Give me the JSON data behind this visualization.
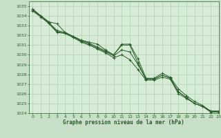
{
  "title": "Graphe pression niveau de la mer (hPa)",
  "background_color": "#c8dfc8",
  "plot_bg_color": "#d6ecd6",
  "grid_color": "#a8c8a8",
  "line_color": "#2a5c2a",
  "xlim": [
    -0.5,
    23
  ],
  "ylim": [
    1024,
    1035.5
  ],
  "xticks": [
    0,
    1,
    2,
    3,
    4,
    5,
    6,
    7,
    8,
    9,
    10,
    11,
    12,
    13,
    14,
    15,
    16,
    17,
    18,
    19,
    20,
    21,
    22,
    23
  ],
  "yticks": [
    1024,
    1025,
    1026,
    1027,
    1028,
    1029,
    1030,
    1031,
    1032,
    1033,
    1034,
    1035
  ],
  "series": [
    [
      1034.7,
      1034.0,
      1033.4,
      1033.2,
      1032.3,
      1031.9,
      1031.5,
      1031.3,
      1031.1,
      1030.5,
      1030.0,
      1031.1,
      1031.1,
      1029.6,
      1027.6,
      1027.6,
      1028.1,
      1027.7,
      1026.5,
      1025.8,
      1025.2,
      1024.8,
      1024.2,
      1024.2
    ],
    [
      1034.7,
      1034.0,
      1033.3,
      1032.5,
      1032.3,
      1031.9,
      1031.5,
      1031.2,
      1030.8,
      1030.4,
      1030.0,
      1031.0,
      1031.0,
      1029.2,
      1027.5,
      1027.5,
      1027.9,
      1027.6,
      1026.2,
      1025.6,
      1025.0,
      1024.7,
      1024.2,
      1024.2
    ],
    [
      1034.5,
      1033.9,
      1033.2,
      1032.3,
      1032.2,
      1031.8,
      1031.3,
      1031.0,
      1030.6,
      1030.2,
      1029.7,
      1030.0,
      1029.5,
      1028.5,
      1027.4,
      1027.4,
      1027.7,
      1027.5,
      1026.0,
      1025.5,
      1025.0,
      1024.7,
      1024.1,
      1024.1
    ],
    [
      1034.6,
      1033.9,
      1033.3,
      1032.4,
      1032.2,
      1031.8,
      1031.4,
      1031.1,
      1030.7,
      1030.3,
      1029.9,
      1030.5,
      1030.3,
      1029.0,
      1027.5,
      1027.5,
      1027.9,
      1027.6,
      1026.2,
      1025.6,
      1025.0,
      1024.7,
      1024.2,
      1024.2
    ]
  ]
}
